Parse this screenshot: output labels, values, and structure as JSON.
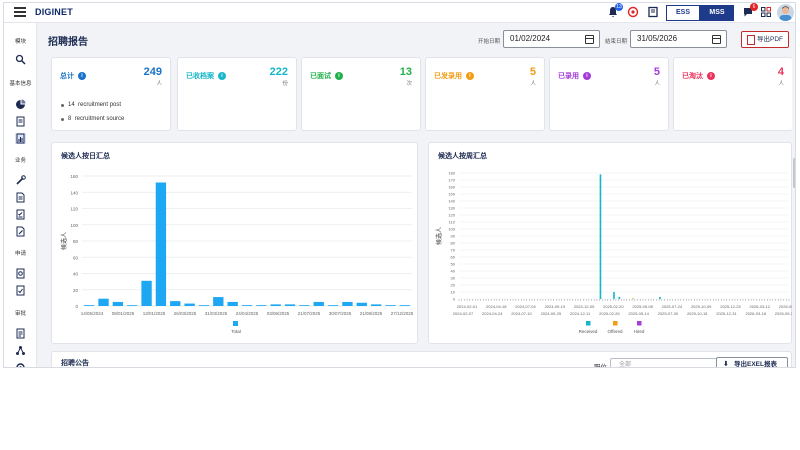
{
  "topbar": {
    "brand": "DIGINET",
    "notif_badge": "13",
    "chat_badge": "6",
    "ess_label": "ESS",
    "mss_label": "MSS"
  },
  "sidebar": {
    "sections": [
      {
        "label": "模块"
      },
      {
        "label": "基本信息"
      },
      {
        "label": "业务"
      },
      {
        "label": "申请"
      },
      {
        "label": "审批"
      }
    ],
    "icons": [
      "search-icon",
      "dashboard-icon",
      "document-icon",
      "report-icon",
      "tools-icon",
      "file-icon",
      "checklist-icon",
      "file-edit-icon",
      "request-icon",
      "approval-icon",
      "approval-list-icon",
      "network-icon",
      "settings-icon"
    ]
  },
  "header": {
    "title": "招聘报告",
    "start_label": "开始日期",
    "start_date": "01/02/2024",
    "end_label": "结束日期",
    "end_date": "31/05/2026",
    "export_pdf": "导出PDF"
  },
  "cards": [
    {
      "label": "总计",
      "value": "249",
      "unit": "人",
      "color": "#1a73c9",
      "dot": "i",
      "lines": [
        {
          "count": "14",
          "text": "recruitment post"
        },
        {
          "count": "8",
          "text": "recruitment source"
        }
      ]
    },
    {
      "label": "已收档案",
      "value": "222",
      "unit": "份",
      "color": "#17b6c9",
      "dot": "i"
    },
    {
      "label": "已面试",
      "value": "13",
      "unit": "次",
      "color": "#22b04b",
      "dot": "i"
    },
    {
      "label": "已发录用",
      "value": "5",
      "unit": "人",
      "color": "#f39c12",
      "dot": "i"
    },
    {
      "label": "已录用",
      "value": "5",
      "unit": "人",
      "color": "#a53bd9",
      "dot": "i"
    },
    {
      "label": "已淘汰",
      "value": "4",
      "unit": "人",
      "color": "#e9335d",
      "dot": "i"
    }
  ],
  "charts": {
    "left_title": "候选人按日汇总",
    "right_title": "候选人按周汇总"
  },
  "chart_data": [
    {
      "type": "bar",
      "title": "候选人按日汇总",
      "ylabel": "候选人",
      "ylim": [
        0,
        160
      ],
      "yticks": [
        0,
        20,
        40,
        60,
        80,
        100,
        120,
        140,
        160
      ],
      "xtick_labels": [
        "14/05/2024",
        "08/01/2025",
        "13/01/2025",
        "26/03/2025",
        "31/03/2025",
        "24/04/2025",
        "03/06/2025",
        "21/07/2025",
        "30/07/2025",
        "21/08/2025",
        "27/12/2025"
      ],
      "series": [
        {
          "name": "Total",
          "color": "#1ea7f2",
          "values": [
            1,
            9,
            5,
            1,
            31,
            152,
            6,
            3,
            1,
            11,
            5,
            1,
            1,
            2,
            2,
            1,
            5,
            1,
            5,
            4,
            2,
            1,
            1
          ]
        }
      ],
      "legend": "bottom"
    },
    {
      "type": "bar",
      "title": "候选人按周汇总",
      "ylabel": "候选人",
      "ylim": [
        0,
        180
      ],
      "yticks": [
        0,
        10,
        20,
        30,
        40,
        50,
        60,
        70,
        80,
        90,
        100,
        110,
        120,
        130,
        140,
        150,
        160,
        170,
        180
      ],
      "xtick_labels_top": [
        "2024-02-01",
        "2024-04-18",
        "2024-07-04",
        "2024-09-19",
        "2024-12-05",
        "2025-02-20",
        "2025-05-08",
        "2025-07-24",
        "2025-10-09",
        "2025-12-25",
        "2026-03-12",
        "2026-05-28"
      ],
      "xtick_labels_bottom": [
        "2024-02-07",
        "2024-04-24",
        "2024-07-10",
        "2024-09-25",
        "2024-12-11",
        "2025-02-26",
        "2025-05-14",
        "2025-07-30",
        "2025-10-15",
        "2025-12-31",
        "2026-03-18",
        "2026-05-31"
      ],
      "weeks": 122,
      "spikes": [
        {
          "series": 0,
          "week": 52,
          "value": 178
        },
        {
          "series": 0,
          "week": 57,
          "value": 10
        },
        {
          "series": 0,
          "week": 59,
          "value": 3
        },
        {
          "series": 1,
          "week": 64,
          "value": 1
        },
        {
          "series": 0,
          "week": 74,
          "value": 3
        }
      ],
      "series": [
        {
          "name": "Received",
          "color": "#17b6c9"
        },
        {
          "name": "Offered",
          "color": "#f39c12"
        },
        {
          "name": "Hired",
          "color": "#a53bd9"
        }
      ],
      "legend": "bottom"
    }
  ],
  "notice": {
    "title": "招聘公告",
    "position_label": "职位",
    "position_placeholder": "全部",
    "export_excel": "导出EXEL报表"
  }
}
